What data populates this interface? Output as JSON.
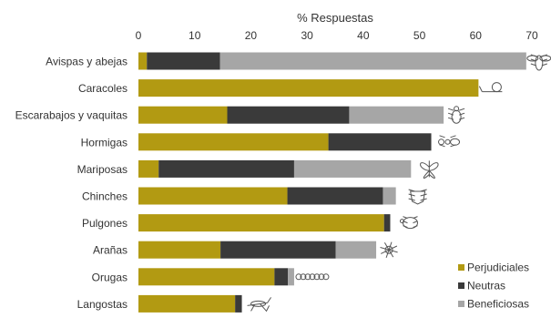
{
  "chart_data": {
    "type": "bar",
    "orientation": "horizontal",
    "stacked": true,
    "xlabel": "% Respuestas",
    "xlim": [
      0,
      70
    ],
    "xticks": [
      0,
      10,
      20,
      30,
      40,
      50,
      60,
      70
    ],
    "categories": [
      "Avispas y abejas",
      "Caracoles",
      "Escarabajos y vaquitas",
      "Hormigas",
      "Mariposas",
      "Chinches",
      "Pulgones",
      "Arañas",
      "Orugas",
      "Langostas"
    ],
    "series": [
      {
        "name": "Perjudiciales",
        "color": "#B29A12",
        "values": [
          1.5,
          60.5,
          15.8,
          33.8,
          3.6,
          26.5,
          43.7,
          14.6,
          24.2,
          17.2
        ]
      },
      {
        "name": "Neutras",
        "color": "#3A3A3A",
        "values": [
          13.0,
          0,
          21.7,
          18.3,
          24.1,
          17.0,
          1.1,
          20.5,
          2.4,
          1.2
        ]
      },
      {
        "name": "Beneficiosas",
        "color": "#A6A6A6",
        "values": [
          54.5,
          0,
          16.8,
          0,
          20.8,
          2.3,
          0,
          7.2,
          1.1,
          0
        ]
      }
    ],
    "legend_position": "bottom-right",
    "grid": false,
    "icons": [
      "bee-icon",
      "snail-icon",
      "beetle-icon",
      "ant-icon",
      "butterfly-icon",
      "stink-bug-icon",
      "aphid-icon",
      "spider-icon",
      "caterpillar-icon",
      "grasshopper-icon"
    ]
  }
}
